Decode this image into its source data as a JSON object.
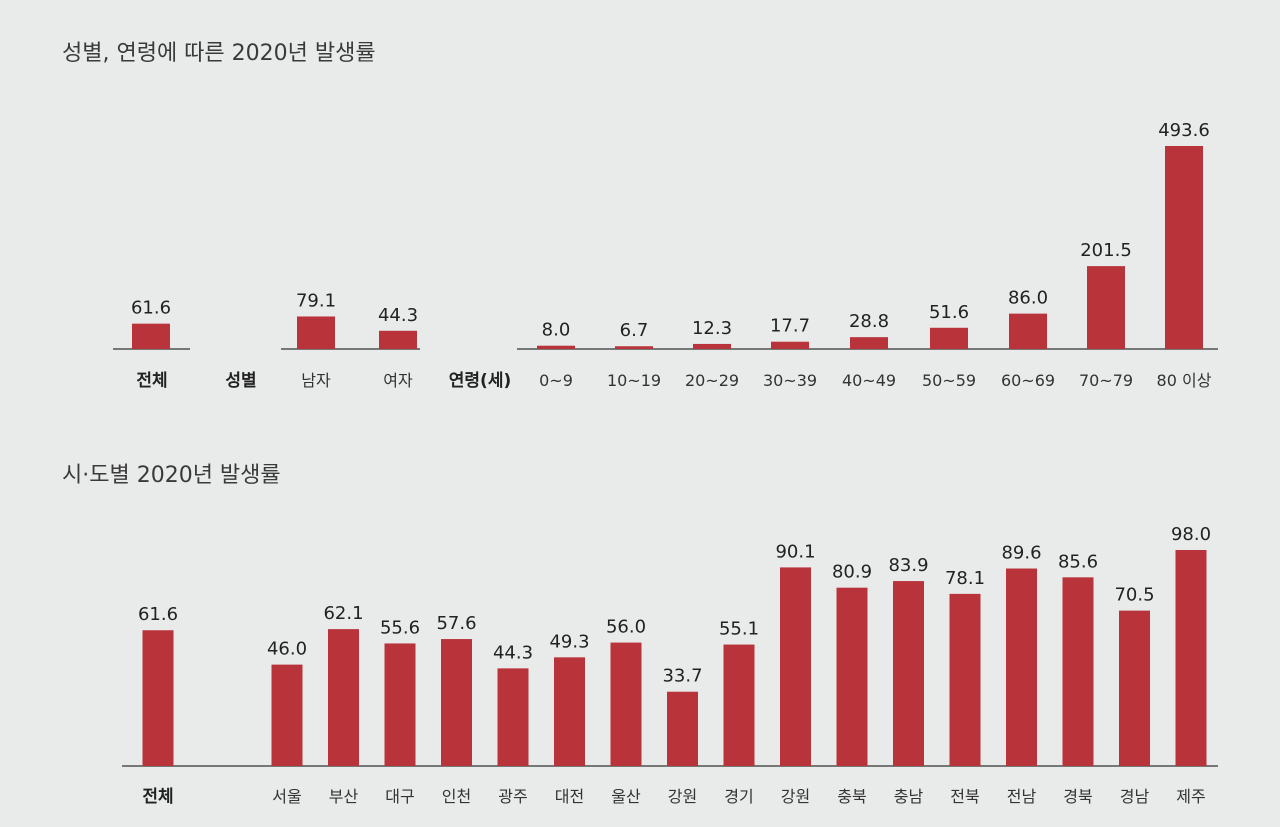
{
  "chart_data": [
    {
      "type": "bar",
      "title": "성별, 연령에 따른 2020년 발생률",
      "groups": {
        "total": {
          "label": "전체",
          "categories": [
            ""
          ],
          "values": [
            61.6
          ]
        },
        "sex": {
          "label": "성별",
          "categories": [
            "남자",
            "여자"
          ],
          "values": [
            79.1,
            44.3
          ]
        },
        "age": {
          "label": "연령(세)",
          "categories": [
            "0~9",
            "10~19",
            "20~29",
            "30~39",
            "40~49",
            "50~59",
            "60~69",
            "70~79",
            "80 이상"
          ],
          "values": [
            8.0,
            6.7,
            12.3,
            17.7,
            28.8,
            51.6,
            86.0,
            201.5,
            493.6
          ]
        }
      },
      "value_labels": [
        "61.6",
        "79.1",
        "44.3",
        "8.0",
        "6.7",
        "12.3",
        "17.7",
        "28.8",
        "51.6",
        "86.0",
        "201.5",
        "493.6"
      ],
      "ylim": [
        0,
        500
      ],
      "grid": false
    },
    {
      "type": "bar",
      "title": "시·도별 2020년 발생률",
      "total": {
        "label": "전체",
        "value": 61.6,
        "value_label": "61.6"
      },
      "categories": [
        "서울",
        "부산",
        "대구",
        "인천",
        "광주",
        "대전",
        "울산",
        "강원",
        "경기",
        "강원",
        "충북",
        "충남",
        "전북",
        "전남",
        "경북",
        "경남",
        "제주"
      ],
      "values": [
        46.0,
        62.1,
        55.6,
        57.6,
        44.3,
        49.3,
        56.0,
        33.7,
        55.1,
        90.1,
        80.9,
        83.9,
        78.1,
        89.6,
        85.6,
        70.5,
        98.0
      ],
      "value_labels": [
        "46.0",
        "62.1",
        "55.6",
        "57.6",
        "44.3",
        "49.3",
        "56.0",
        "33.7",
        "55.1",
        "90.1",
        "80.9",
        "83.9",
        "78.1",
        "89.6",
        "85.6",
        "70.5",
        "98.0"
      ],
      "ylim": [
        0,
        100
      ],
      "grid": false
    }
  ],
  "colors": {
    "bar": "#b9343a",
    "background": "#e9eaea",
    "text": "#222222"
  }
}
